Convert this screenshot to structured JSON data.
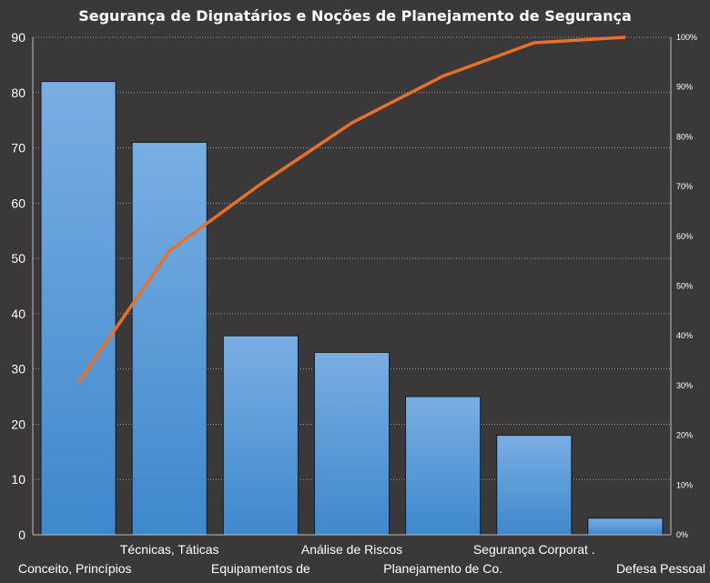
{
  "chart_data": {
    "type": "bar",
    "title": "Segurança de Dignatários  e Noções de Planejamento de Segurança",
    "categories": [
      "Conceito, Princípios",
      "Técnicas, Táticas",
      "Equipamentos de",
      "Análise de Riscos",
      "Planejamento de Co.",
      "Segurança Corporat .",
      "Defesa Pessoal"
    ],
    "series": [
      {
        "values": [
          82,
          71,
          36,
          33,
          25,
          18,
          3
        ]
      },
      {
        "type": "line",
        "axis": "right",
        "values": [
          30.6,
          57.1,
          70.5,
          82.8,
          92.2,
          98.9,
          100
        ]
      }
    ],
    "ylim": [
      0,
      90
    ],
    "yticks": [
      "0",
      "10",
      "20",
      "30",
      "40",
      "50",
      "60",
      "70",
      "80",
      "90"
    ],
    "y2lim": [
      0,
      100
    ],
    "y2ticks": [
      "0%",
      "10%",
      "20%",
      "30%",
      "40%",
      "50%",
      "60%",
      "70%",
      "80%",
      "90%",
      "100%"
    ],
    "grid": true,
    "legend": "none",
    "colors": {
      "background": "#3a3838",
      "bar_top": "#7aaee3",
      "bar_bottom": "#3e88cc",
      "line": "#e8702a",
      "grid": "#c8c8c8",
      "text": "#ffffff"
    }
  }
}
